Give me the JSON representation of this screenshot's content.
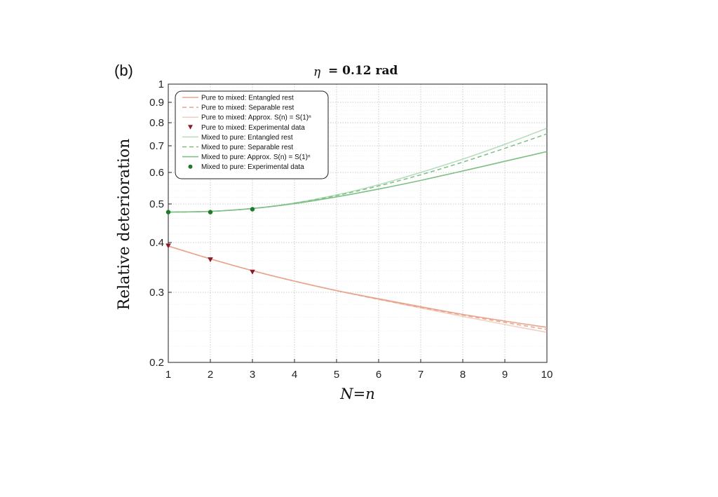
{
  "panel_label": "(b)",
  "chart_data": {
    "type": "line",
    "title_symbol": "η",
    "title_value": "= 0.12 rad",
    "xlabel": "N=n",
    "ylabel": "Relative deterioration",
    "x_ticks": [
      "1",
      "2",
      "3",
      "4",
      "5",
      "6",
      "7",
      "8",
      "9",
      "10"
    ],
    "y_ticks": [
      "0.2",
      "0.3",
      "0.4",
      "0.5",
      "0.6",
      "0.7",
      "0.8",
      "0.9",
      "1"
    ],
    "xlim": [
      1,
      10
    ],
    "ylim": [
      0.2,
      1.0
    ],
    "yscale": "log",
    "grid": true,
    "legend_position": "top-left",
    "colors": {
      "pure": "#e8a58d",
      "mixed": "#7dbf85",
      "pure_marker": "#8b1a2b",
      "mixed_marker": "#1f7a2a"
    },
    "x": [
      1,
      2,
      3,
      4,
      5,
      6,
      7,
      8,
      9,
      10
    ],
    "series": [
      {
        "name": "Pure to mixed: Entangled rest",
        "style": "solid",
        "group": "pure",
        "values": [
          0.392,
          0.364,
          0.34,
          0.32,
          0.303,
          0.289,
          0.276,
          0.264,
          0.254,
          0.245
        ]
      },
      {
        "name": "Pure to mixed: Separable rest",
        "style": "dashed",
        "group": "pure",
        "values": [
          0.392,
          0.364,
          0.34,
          0.32,
          0.303,
          0.288,
          0.275,
          0.263,
          0.252,
          0.242
        ]
      },
      {
        "name": "Pure to mixed: Approx. S(n) = S(1)ⁿ",
        "style": "solid-light",
        "group": "pure",
        "values": [
          0.392,
          0.364,
          0.34,
          0.32,
          0.303,
          0.288,
          0.274,
          0.261,
          0.249,
          0.238
        ]
      },
      {
        "name": "Pure to mixed: Experimental data",
        "style": "marker-triangle",
        "group": "pure",
        "x": [
          1,
          2,
          3
        ],
        "values": [
          0.392,
          0.362,
          0.337
        ]
      },
      {
        "name": "Mixed to pure: Entangled rest",
        "style": "solid-light",
        "group": "mixed",
        "values": [
          0.477,
          0.479,
          0.487,
          0.503,
          0.527,
          0.559,
          0.6,
          0.648,
          0.706,
          0.775
        ]
      },
      {
        "name": "Mixed to pure: Separable rest",
        "style": "dashed",
        "group": "mixed",
        "values": [
          0.477,
          0.479,
          0.487,
          0.502,
          0.525,
          0.555,
          0.592,
          0.637,
          0.69,
          0.75
        ]
      },
      {
        "name": "Mixed to pure: Approx. S(n) = S(1)ⁿ",
        "style": "solid",
        "group": "mixed",
        "values": [
          0.477,
          0.479,
          0.487,
          0.501,
          0.521,
          0.545,
          0.573,
          0.605,
          0.64,
          0.677
        ]
      },
      {
        "name": "Mixed to pure: Experimental data",
        "style": "marker-circle",
        "group": "mixed",
        "x": [
          1,
          2,
          3
        ],
        "values": [
          0.477,
          0.477,
          0.485
        ]
      }
    ]
  }
}
